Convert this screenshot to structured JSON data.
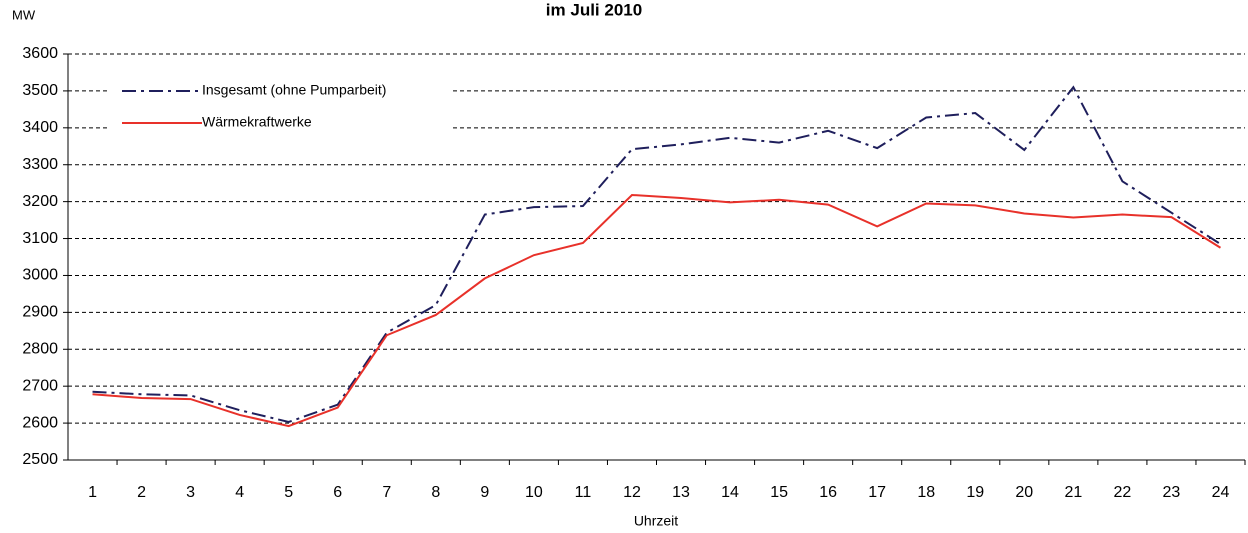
{
  "chart_data": {
    "type": "line",
    "title": "im Juli 2010",
    "y_unit": "MW",
    "x_label": "Uhrzeit",
    "categories": [
      "1",
      "2",
      "3",
      "4",
      "5",
      "6",
      "7",
      "8",
      "9",
      "10",
      "11",
      "12",
      "13",
      "14",
      "15",
      "16",
      "17",
      "18",
      "19",
      "20",
      "21",
      "22",
      "23",
      "24"
    ],
    "series": [
      {
        "name": "Insgesamt (ohne Pumparbeit)",
        "color": "#1f1f5c",
        "line_style": "dashdot",
        "values": [
          2685,
          2678,
          2675,
          2635,
          2603,
          2650,
          2845,
          2920,
          3165,
          3185,
          3188,
          3342,
          3355,
          3373,
          3360,
          3392,
          3345,
          3428,
          3440,
          3340,
          3510,
          3255,
          3170,
          3085
        ]
      },
      {
        "name": "Wärmekraftwerke",
        "color": "#e8312a",
        "line_style": "solid",
        "values": [
          2678,
          2668,
          2665,
          2622,
          2592,
          2642,
          2838,
          2893,
          2992,
          3055,
          3088,
          3218,
          3210,
          3198,
          3205,
          3192,
          3133,
          3195,
          3190,
          3168,
          3157,
          3165,
          3158,
          3075
        ]
      }
    ],
    "ylim": [
      2500,
      3600
    ],
    "yticks": [
      2500,
      2600,
      2700,
      2800,
      2900,
      3000,
      3100,
      3200,
      3300,
      3400,
      3500,
      3600
    ],
    "grid": true,
    "legend": "upper left"
  }
}
